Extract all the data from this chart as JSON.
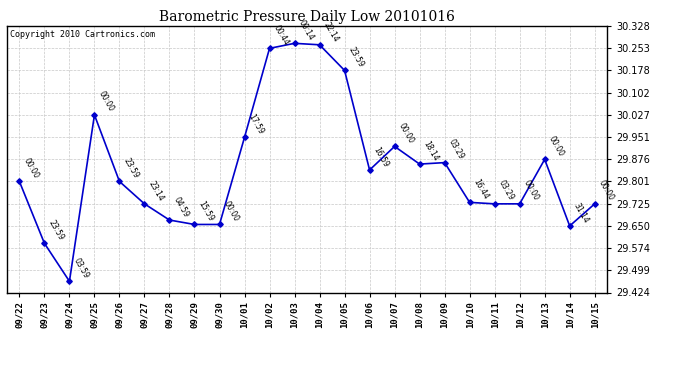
{
  "title": "Barometric Pressure Daily Low 20101016",
  "copyright": "Copyright 2010 Cartronics.com",
  "line_color": "#0000CC",
  "marker_color": "#0000CC",
  "bg_color": "#FFFFFF",
  "grid_color": "#C8C8C8",
  "x_labels": [
    "09/22",
    "09/23",
    "09/24",
    "09/25",
    "09/26",
    "09/27",
    "09/28",
    "09/29",
    "09/30",
    "10/01",
    "10/02",
    "10/03",
    "10/04",
    "10/05",
    "10/06",
    "10/07",
    "10/08",
    "10/09",
    "10/10",
    "10/11",
    "10/12",
    "10/13",
    "10/14",
    "10/15"
  ],
  "y_values": [
    29.801,
    29.591,
    29.462,
    30.027,
    29.801,
    29.725,
    29.67,
    29.655,
    29.655,
    29.951,
    30.253,
    30.27,
    30.265,
    30.178,
    29.84,
    29.92,
    29.86,
    29.865,
    29.73,
    29.725,
    29.725,
    29.876,
    29.65,
    29.725
  ],
  "point_labels": [
    "00:00",
    "23:59",
    "03:59",
    "00:00",
    "23:59",
    "23:14",
    "04:59",
    "15:59",
    "00:00",
    "17:59",
    "00:44",
    "00:14",
    "22:14",
    "23:59",
    "16:59",
    "00:00",
    "18:14",
    "03:29",
    "16:44",
    "03:29",
    "00:00",
    "00:00",
    "31:14",
    "00:00"
  ],
  "y_min": 29.424,
  "y_max": 30.328,
  "y_ticks": [
    29.424,
    29.499,
    29.574,
    29.65,
    29.725,
    29.801,
    29.876,
    29.951,
    30.027,
    30.102,
    30.178,
    30.253,
    30.328
  ]
}
